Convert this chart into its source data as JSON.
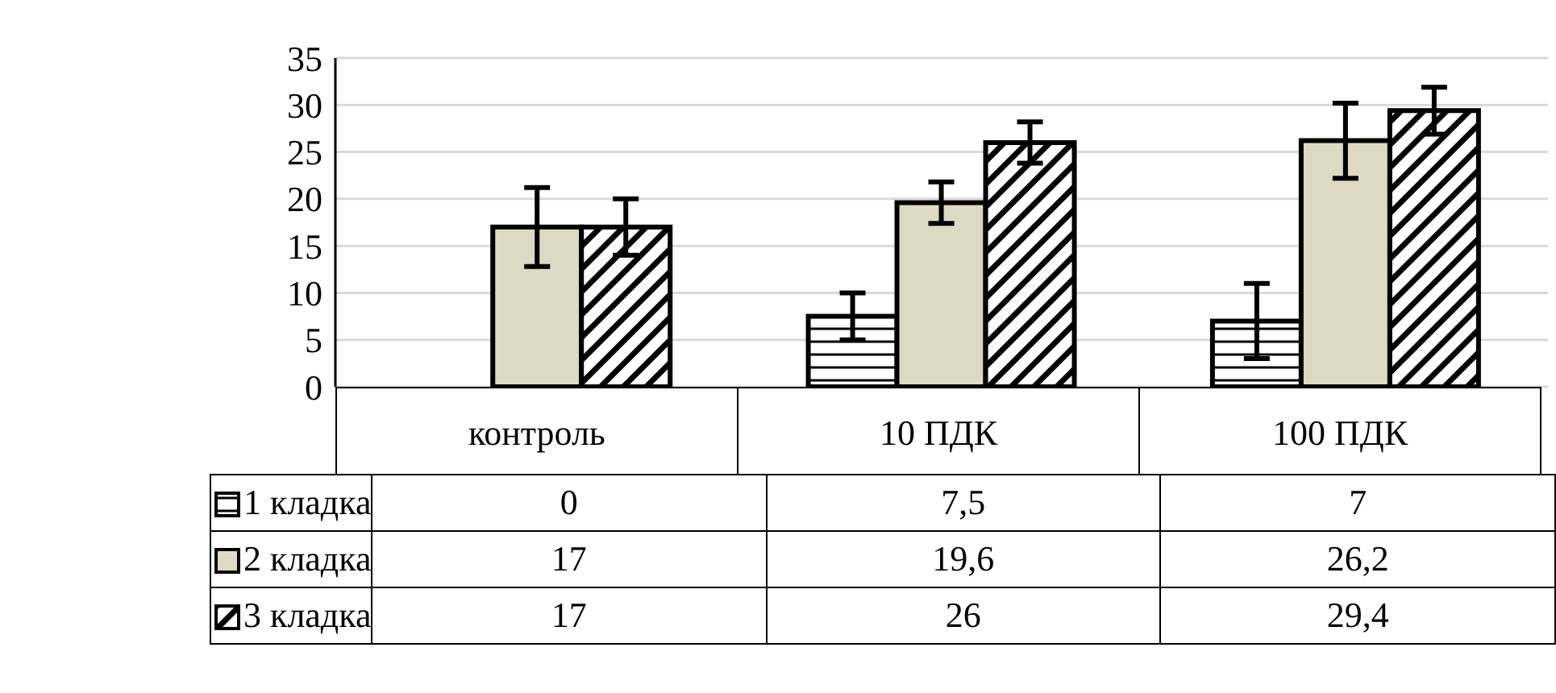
{
  "chart_data": {
    "type": "bar",
    "categories": [
      "контроль",
      "10 ПДК",
      "100 ПДК"
    ],
    "series": [
      {
        "name": "1 кладка",
        "color": "#000000",
        "values": [
          0,
          7.5,
          7
        ],
        "errors": [
          null,
          2.5,
          4
        ],
        "value_labels": [
          "0",
          "7,5",
          "7"
        ]
      },
      {
        "name": "2 кладка",
        "color": "#ddd9c3",
        "values": [
          17,
          19.6,
          26.2
        ],
        "errors": [
          4.2,
          2.2,
          4
        ],
        "value_labels": [
          "17",
          "19,6",
          "26,2"
        ]
      },
      {
        "name": "3 кладка",
        "color": "#000000",
        "values": [
          17,
          26,
          29.4
        ],
        "errors": [
          3,
          2.2,
          2.5
        ],
        "value_labels": [
          "17",
          "26",
          "29,4"
        ]
      }
    ],
    "ylim": [
      0,
      35
    ],
    "yticks": [
      0,
      5,
      10,
      15,
      20,
      25,
      30,
      35
    ],
    "grid": "y",
    "legend": "bottom"
  }
}
